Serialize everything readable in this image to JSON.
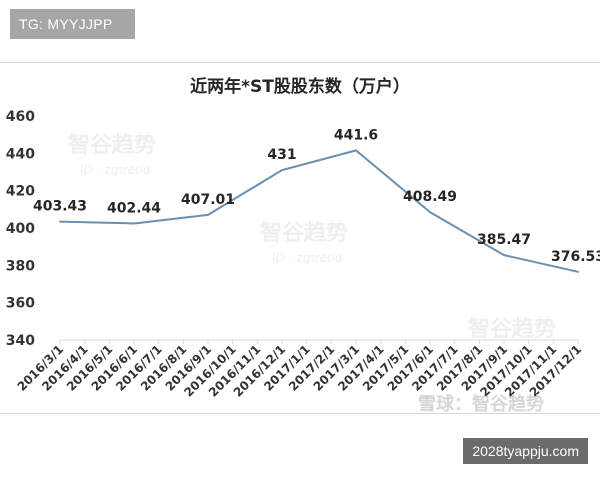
{
  "top_badge": {
    "text": "TG: MYYJJPP"
  },
  "bottom_badge": {
    "text": "2028tyappju.com"
  },
  "watermarks": {
    "brand": "智谷趋势",
    "handle": "ID : zgtrend",
    "footer": "雪球：智谷趋势"
  },
  "chart_data": {
    "type": "line",
    "title": "近两年*ST股股东数（万户）",
    "xlabel": "",
    "ylabel": "",
    "ylim": [
      340,
      460
    ],
    "yticks": [
      340,
      360,
      380,
      400,
      420,
      440,
      460
    ],
    "categories": [
      "2016/3/1",
      "2016/4/1",
      "2016/5/1",
      "2016/6/1",
      "2016/7/1",
      "2016/8/1",
      "2016/9/1",
      "2016/10/1",
      "2016/11/1",
      "2016/12/1",
      "2017/1/1",
      "2017/2/1",
      "2017/3/1",
      "2017/4/1",
      "2017/5/1",
      "2017/6/1",
      "2017/7/1",
      "2017/8/1",
      "2017/9/1",
      "2017/10/1",
      "2017/11/1",
      "2017/12/1"
    ],
    "series": [
      {
        "values": [
          403.43,
          null,
          null,
          402.44,
          null,
          null,
          407.01,
          null,
          null,
          431,
          null,
          null,
          441.6,
          null,
          null,
          408.49,
          null,
          null,
          385.47,
          null,
          null,
          376.53
        ],
        "color": "#6a8fb0"
      }
    ],
    "data_labels": [
      {
        "index": 0,
        "text": "403.43"
      },
      {
        "index": 3,
        "text": "402.44"
      },
      {
        "index": 6,
        "text": "407.01"
      },
      {
        "index": 9,
        "text": "431"
      },
      {
        "index": 12,
        "text": "441.6"
      },
      {
        "index": 15,
        "text": "408.49"
      },
      {
        "index": 18,
        "text": "385.47"
      },
      {
        "index": 21,
        "text": "376.53"
      }
    ],
    "grid": false,
    "legend": "none"
  }
}
